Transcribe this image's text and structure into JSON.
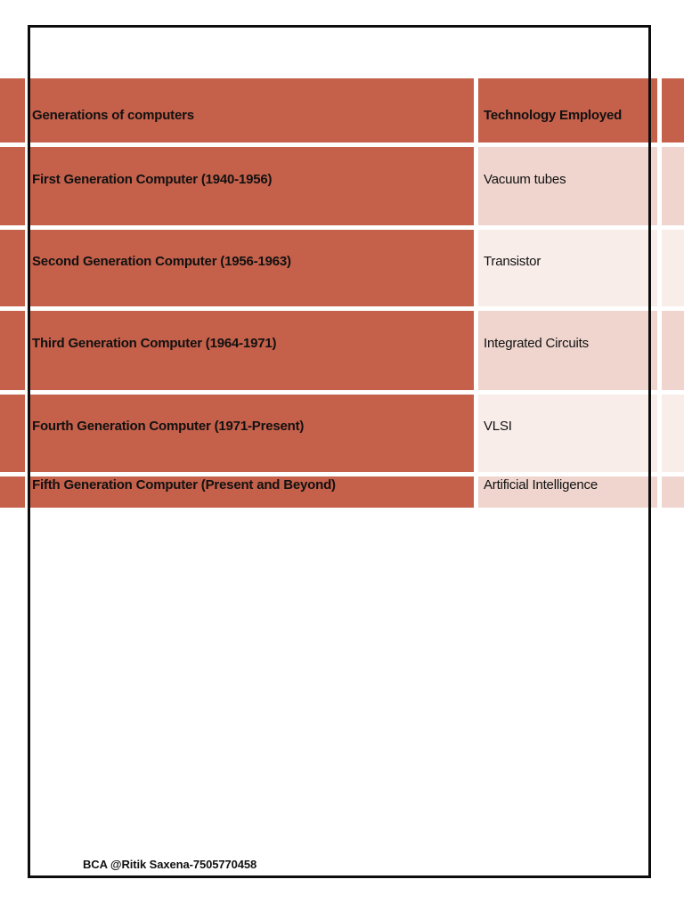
{
  "document": {
    "footer_credit": "BCA @Ritik Saxena-7505770458"
  },
  "colors": {
    "accent": "#c5604a",
    "bandDark": "#efd5ce",
    "bandLight": "#f8ede9",
    "frame": "#0d0d0d",
    "textDark": "#111111",
    "pageBg": "#ffffff"
  },
  "table": {
    "header": {
      "generations": "Generations of computers",
      "technology": "Technology Employed"
    },
    "rows": [
      {
        "generation": "First Generation Computer (1940-1956)",
        "technology": "Vacuum tubes"
      },
      {
        "generation": "Second Generation Computer (1956-1963)",
        "technology": "Transistor"
      },
      {
        "generation": "Third Generation Computer (1964-1971)",
        "technology": "Integrated Circuits"
      },
      {
        "generation": "Fourth Generation Computer (1971-Present)",
        "technology": "VLSI"
      },
      {
        "generation": "Fifth Generation Computer (Present and Beyond)",
        "technology": "Artificial Intelligence"
      }
    ]
  }
}
